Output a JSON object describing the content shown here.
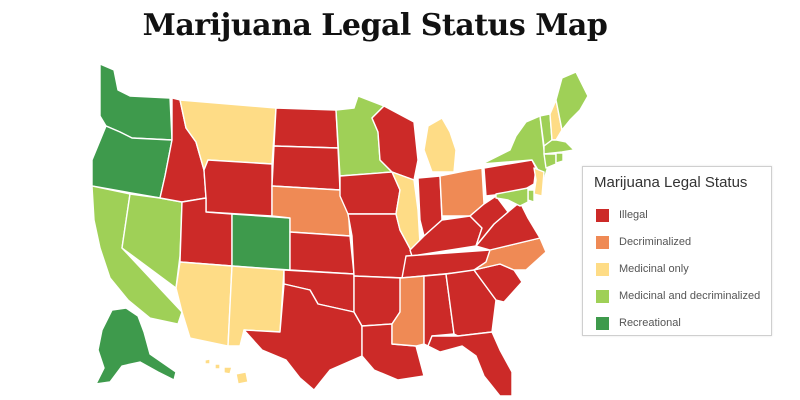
{
  "title": "Marijuana Legal Status Map",
  "legend": {
    "title": "Marijuana Legal Status",
    "items": [
      {
        "key": "illegal",
        "label": "Illegal",
        "color": "#cc2a28"
      },
      {
        "key": "decriminalized",
        "label": "Decriminalized",
        "color": "#ef8a55"
      },
      {
        "key": "medicinal",
        "label": "Medicinal only",
        "color": "#fedc86"
      },
      {
        "key": "medicinal_decrim",
        "label": "Medicinal and decriminalized",
        "color": "#9fd057"
      },
      {
        "key": "recreational",
        "label": "Recreational",
        "color": "#3e9a4c"
      }
    ]
  },
  "states": {
    "WA": "recreational",
    "OR": "recreational",
    "CA": "medicinal_decrim",
    "NV": "medicinal_decrim",
    "ID": "illegal",
    "MT": "medicinal",
    "WY": "illegal",
    "UT": "illegal",
    "CO": "recreational",
    "AZ": "medicinal",
    "NM": "medicinal",
    "ND": "illegal",
    "SD": "illegal",
    "NE": "decriminalized",
    "KS": "illegal",
    "OK": "illegal",
    "TX": "illegal",
    "MN": "medicinal_decrim",
    "IA": "illegal",
    "MO": "illegal",
    "AR": "illegal",
    "LA": "illegal",
    "WI": "illegal",
    "IL": "medicinal",
    "MI": "medicinal",
    "IN": "illegal",
    "OH": "decriminalized",
    "KY": "illegal",
    "TN": "illegal",
    "MS": "decriminalized",
    "AL": "illegal",
    "GA": "illegal",
    "FL": "illegal",
    "SC": "illegal",
    "NC": "decriminalized",
    "VA": "illegal",
    "WV": "illegal",
    "PA": "illegal",
    "NY": "medicinal_decrim",
    "VT": "medicinal_decrim",
    "NH": "medicinal",
    "ME": "medicinal_decrim",
    "MA": "medicinal_decrim",
    "CT": "medicinal_decrim",
    "RI": "medicinal_decrim",
    "NJ": "medicinal",
    "DE": "medicinal_decrim",
    "MD": "medicinal_decrim",
    "AK": "recreational",
    "HI": "medicinal"
  }
}
